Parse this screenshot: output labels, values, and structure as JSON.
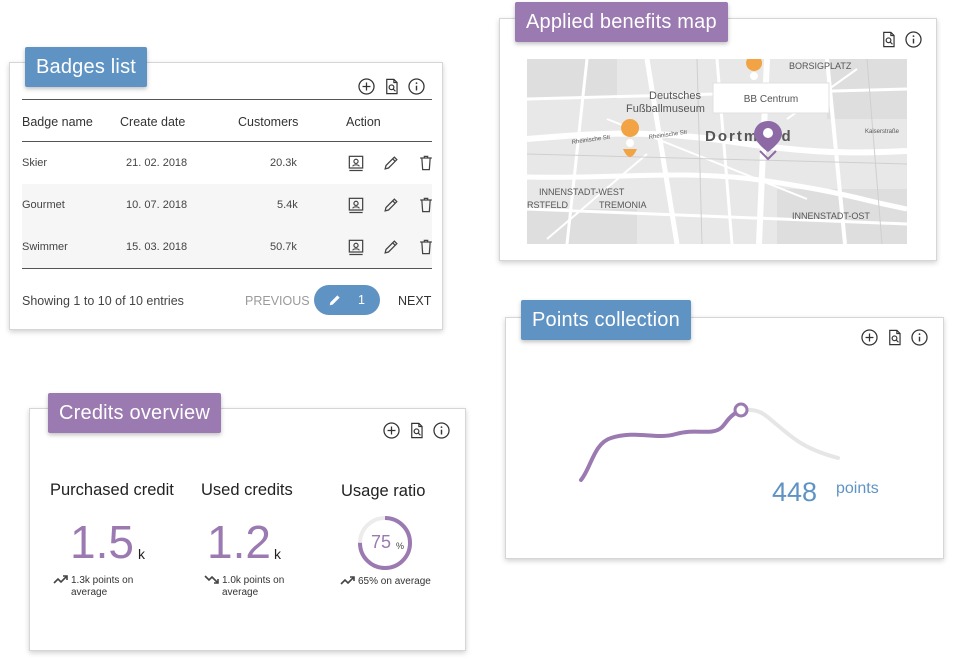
{
  "badges": {
    "title": "Badges list",
    "columns": [
      "Badge name",
      "Create date",
      "Customers",
      "Action"
    ],
    "rows": [
      {
        "name": "Skier",
        "date": "21. 02. 2018",
        "customers": "20.3k"
      },
      {
        "name": "Gourmet",
        "date": "10. 07. 2018",
        "customers": "5.4k"
      },
      {
        "name": "Swimmer",
        "date": "15. 03. 2018",
        "customers": "50.7k"
      }
    ],
    "footer": "Showing 1 to 10 of 10 entries",
    "previous": "PREVIOUS",
    "page": "1",
    "next": "NEXT"
  },
  "map": {
    "title": "Applied benefits map",
    "popup": "BB Centrum",
    "city": "Dortmund",
    "labels": {
      "museum1": "Deutsches",
      "museum2": "Fußballmuseum",
      "borsig": "BORSIGPLATZ",
      "innenstadt_west": "INNENSTADT-WEST",
      "tremonia": "TREMONIA",
      "rstfeld": "RSTFELD",
      "innenstadt_ost": "INNENSTADT-OST",
      "rheinische_str": "Rheinische Str",
      "rheinische_str2": "Rheinische Str",
      "kaiserstrasse": "Kaiserstraße"
    }
  },
  "credits": {
    "title": "Credits overview",
    "purchased": {
      "title": "Purchased credit",
      "value": "1.5",
      "unit": "k",
      "avg": "1.3k points on average",
      "avg_l1": "1.3k points on",
      "avg_l2": "average"
    },
    "used": {
      "title": "Used credits",
      "value": "1.2",
      "unit": "k",
      "avg_l1": "1.0k points on",
      "avg_l2": "average"
    },
    "ratio": {
      "title": "Usage ratio",
      "value": "75",
      "unit": "%",
      "percent": 75,
      "avg": "65% on average"
    }
  },
  "points": {
    "title": "Points collection",
    "value": "448",
    "label": "points"
  },
  "colors": {
    "blue": "#5f93c4",
    "purple": "#9b79b1",
    "orange": "#f2a444"
  }
}
